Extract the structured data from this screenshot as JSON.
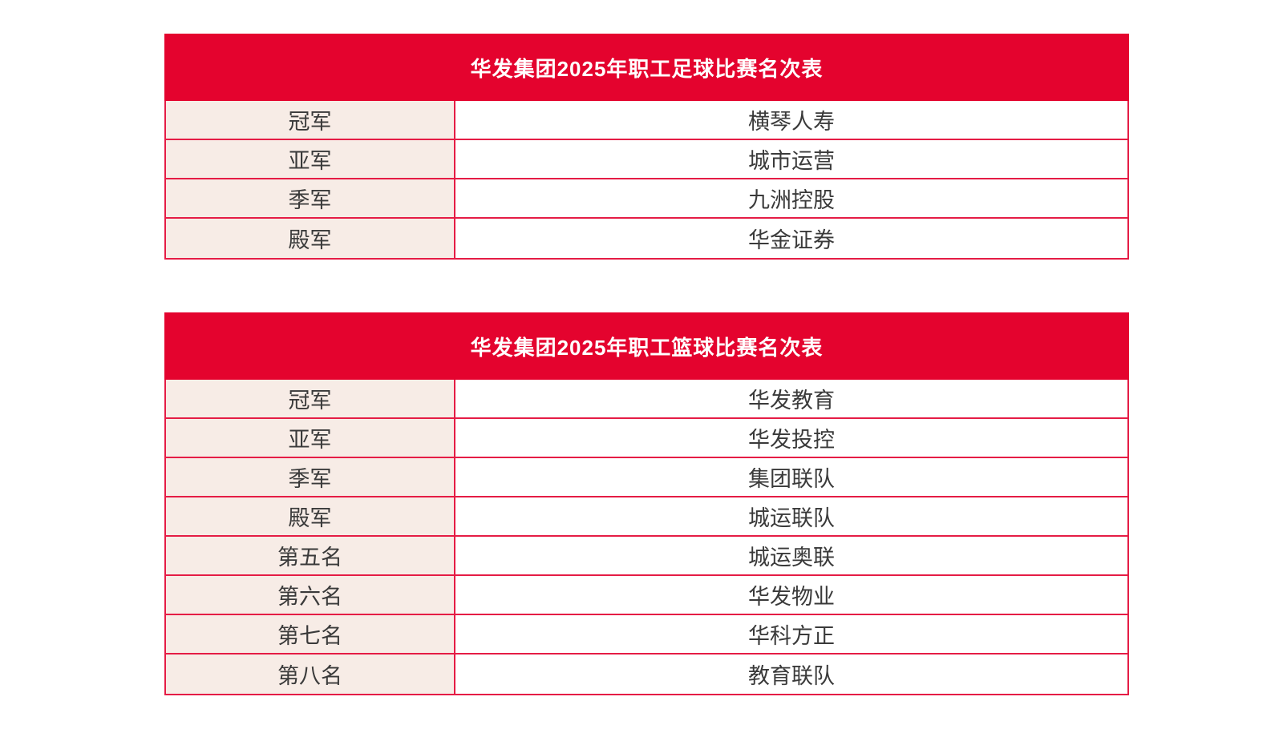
{
  "colors": {
    "accent_red": "#e4032e",
    "border_red": "#e51c45",
    "rank_cell_bg": "#f7ece6",
    "cell_bg": "#ffffff",
    "title_text": "#ffffff",
    "body_text": "#3a3a3a"
  },
  "tables": [
    {
      "id": "football",
      "title": "华发集团2025年职工足球比赛名次表",
      "rows": [
        {
          "rank": "冠军",
          "team": "横琴人寿"
        },
        {
          "rank": "亚军",
          "team": "城市运营"
        },
        {
          "rank": "季军",
          "team": "九洲控股"
        },
        {
          "rank": "殿军",
          "team": "华金证券"
        }
      ]
    },
    {
      "id": "basketball",
      "title": "华发集团2025年职工篮球比赛名次表",
      "rows": [
        {
          "rank": "冠军",
          "team": "华发教育"
        },
        {
          "rank": "亚军",
          "team": "华发投控"
        },
        {
          "rank": "季军",
          "team": "集团联队"
        },
        {
          "rank": "殿军",
          "team": "城运联队"
        },
        {
          "rank": "第五名",
          "team": "城运奥联"
        },
        {
          "rank": "第六名",
          "team": "华发物业"
        },
        {
          "rank": "第七名",
          "team": "华科方正"
        },
        {
          "rank": "第八名",
          "team": "教育联队"
        }
      ]
    }
  ]
}
